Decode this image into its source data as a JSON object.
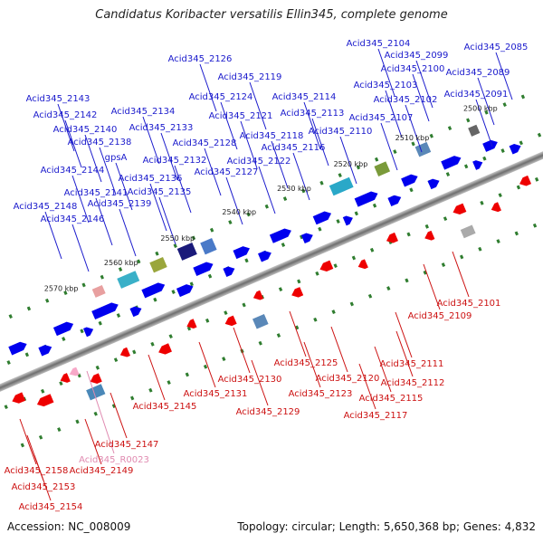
{
  "title": "Candidatus Koribacter versatilis Ellin345, complete genome",
  "accession": "Accession: NC_008009",
  "summary": "Topology: circular; Length: 5,650,368 bp; Genes: 4,832",
  "colors": {
    "backbone": "#8a8a8a",
    "forward_gene": "#0000ee",
    "reverse_gene": "#ee0000",
    "rna_gene": "#f7a8c8",
    "forward_label": "#1a1acc",
    "reverse_label": "#cc1111",
    "rna_label": "#e08ab0",
    "tick": "#2f7d2f"
  },
  "ruler": [
    "2500 kbp",
    "2510 kbp",
    "2520 kbp",
    "2530 kbp",
    "2540 kbp",
    "2550 kbp",
    "2560 kbp",
    "2570 kbp"
  ],
  "forward_labels": [
    "Acid345_2085",
    "Acid345_2089",
    "Acid345_2091",
    "Acid345_2099",
    "Acid345_2100",
    "Acid345_2102",
    "Acid345_2103",
    "Acid345_2104",
    "Acid345_2107",
    "Acid345_2110",
    "Acid345_2113",
    "Acid345_2114",
    "Acid345_2116",
    "Acid345_2118",
    "Acid345_2119",
    "Acid345_2121",
    "Acid345_2122",
    "Acid345_2124",
    "Acid345_2126",
    "Acid345_2127",
    "Acid345_2128",
    "Acid345_2132",
    "Acid345_2133",
    "Acid345_2134",
    "Acid345_2135",
    "Acid345_2136",
    "Acid345_2138",
    "Acid345_2139",
    "Acid345_2140",
    "Acid345_2141",
    "Acid345_2142",
    "Acid345_2143",
    "Acid345_2144",
    "Acid345_2146",
    "Acid345_2148",
    "gpsA"
  ],
  "reverse_labels": [
    "Acid345_2101",
    "Acid345_2109",
    "Acid345_2111",
    "Acid345_2112",
    "Acid345_2115",
    "Acid345_2117",
    "Acid345_2120",
    "Acid345_2123",
    "Acid345_2125",
    "Acid345_2129",
    "Acid345_2130",
    "Acid345_2131",
    "Acid345_2145",
    "Acid345_2147",
    "Acid345_2149",
    "Acid345_2153",
    "Acid345_2154",
    "Acid345_2158"
  ],
  "rna_labels": [
    "Acid345_R0023"
  ]
}
